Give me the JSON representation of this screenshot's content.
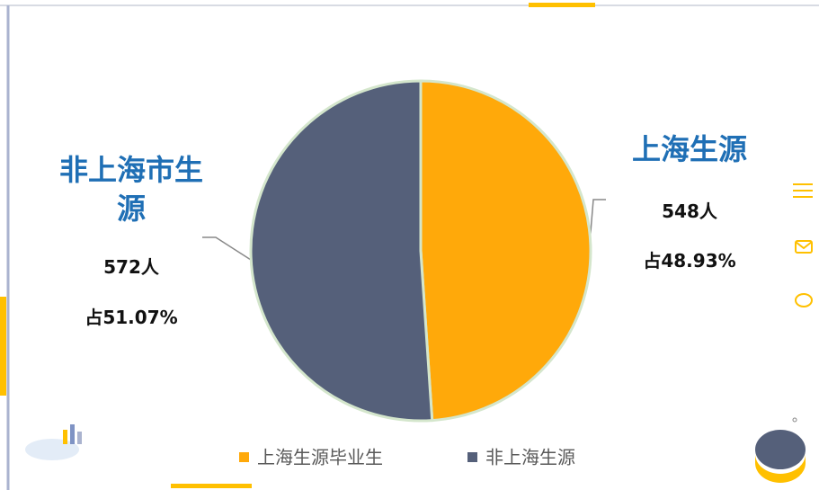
{
  "chart_data": {
    "type": "pie",
    "categories": [
      "上海生源",
      "非上海市生源"
    ],
    "values": [
      548,
      572
    ],
    "value_labels": [
      "548人",
      "572人"
    ],
    "percent_labels": [
      "占48.93%",
      "占51.07%"
    ],
    "series": [
      {
        "name": "上海生源毕业生",
        "color": "#ffa90a"
      },
      {
        "name": "非上海生源",
        "color": "#55607a"
      }
    ],
    "legend": "bottom"
  }
}
